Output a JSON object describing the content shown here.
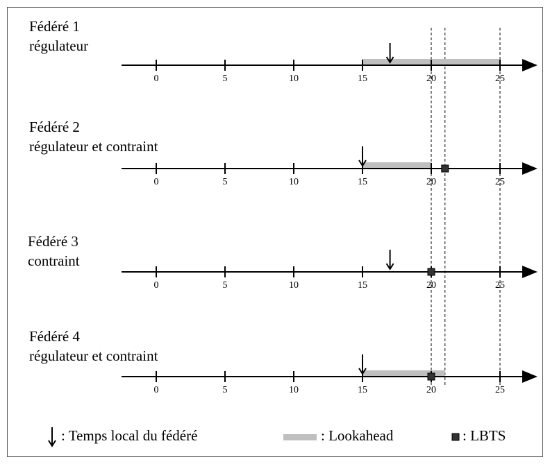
{
  "federates": [
    {
      "name": "Fédéré 1",
      "role": "régulateur",
      "local_time": 17,
      "lookahead": [
        15,
        25
      ],
      "lbts": null
    },
    {
      "name": "Fédéré 2",
      "role": "régulateur et contraint",
      "local_time": 15,
      "lookahead": [
        15,
        20
      ],
      "lbts": 21
    },
    {
      "name": "Fédéré 3",
      "role": "contraint",
      "local_time": 17,
      "lookahead": null,
      "lbts": 20
    },
    {
      "name": "Fédéré 4",
      "role": "régulateur et contraint",
      "local_time": 15,
      "lookahead": [
        15,
        21
      ],
      "lbts": 20
    }
  ],
  "axis": {
    "ticks": [
      0,
      5,
      10,
      15,
      20,
      25
    ]
  },
  "guides": [
    20,
    21,
    25
  ],
  "legend": {
    "local_time": ": Temps local du fédéré",
    "lookahead": ": Lookahead",
    "lbts": ": LBTS"
  }
}
